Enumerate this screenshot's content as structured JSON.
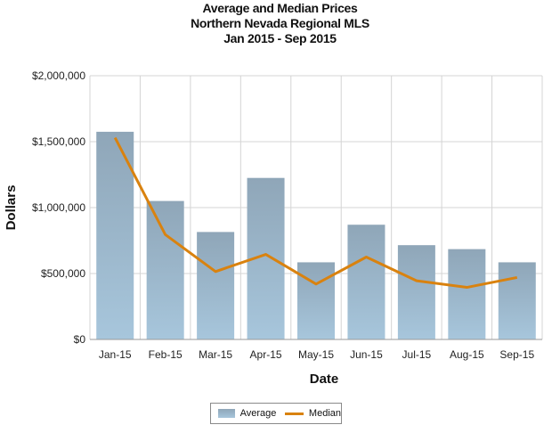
{
  "title_lines": [
    "Average and Median Prices",
    "Northern Nevada Regional MLS",
    "Jan 2015 - Sep 2015"
  ],
  "colors": {
    "bar_top": "#8fa6b8",
    "bar_bottom": "#a7c6dc",
    "line": "#d9820f",
    "grid": "#d4d4d4"
  },
  "chart_data": {
    "type": "bar",
    "title": "Average and Median Prices",
    "xlabel": "Date",
    "ylabel": "Dollars",
    "categories": [
      "Jan-15",
      "Feb-15",
      "Mar-15",
      "Apr-15",
      "May-15",
      "Jun-15",
      "Jul-15",
      "Aug-15",
      "Sep-15"
    ],
    "ylim": [
      0,
      2000000
    ],
    "yticks": [
      0,
      500000,
      1000000,
      1500000,
      2000000
    ],
    "ytick_labels": [
      "$0",
      "$500,000",
      "$1,000,000",
      "$1,500,000",
      "$2,000,000"
    ],
    "grid": true,
    "legend_position": "bottom",
    "series": [
      {
        "name": "Average",
        "kind": "bar",
        "values": [
          1575000,
          1050000,
          815000,
          1225000,
          585000,
          870000,
          715000,
          685000,
          585000
        ]
      },
      {
        "name": "Median",
        "kind": "line",
        "values": [
          1530000,
          795000,
          515000,
          645000,
          420000,
          625000,
          445000,
          395000,
          470000
        ]
      }
    ]
  }
}
